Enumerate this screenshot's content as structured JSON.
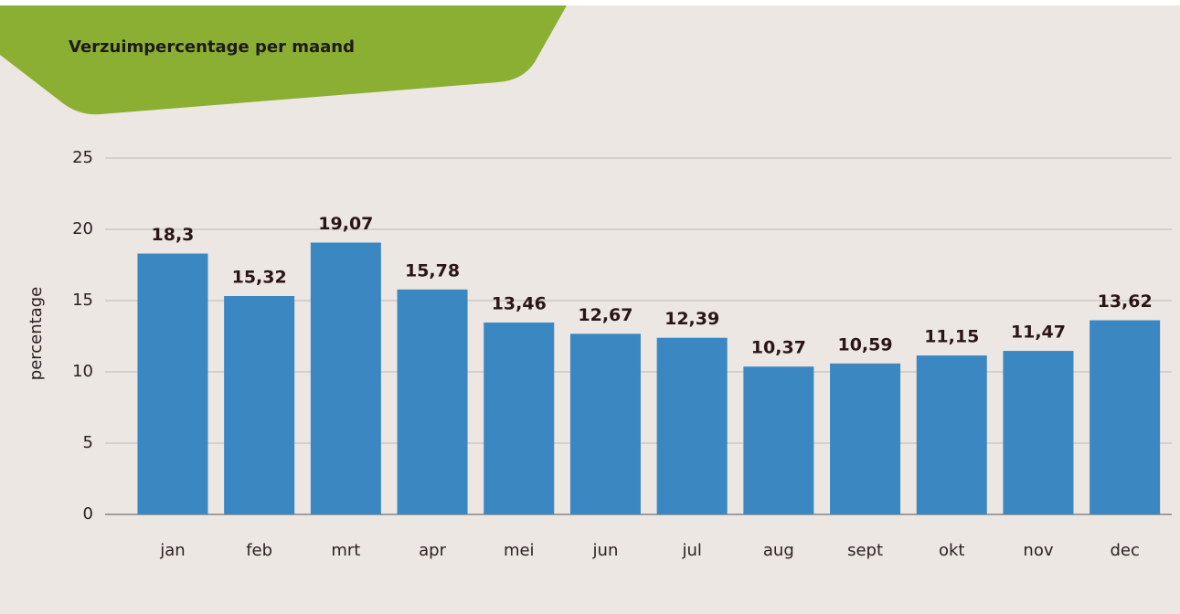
{
  "chart_data": {
    "type": "bar",
    "title": "Verzuimpercentage per maand",
    "y_label": "percentage",
    "categories": [
      "jan",
      "feb",
      "mrt",
      "apr",
      "mei",
      "jun",
      "jul",
      "aug",
      "sept",
      "okt",
      "nov",
      "dec"
    ],
    "values": [
      18.3,
      15.32,
      19.07,
      15.78,
      13.46,
      12.67,
      12.39,
      10.37,
      10.59,
      11.15,
      11.47,
      13.62
    ],
    "value_labels": [
      "18,3",
      "15,32",
      "19,07",
      "15,78",
      "13,46",
      "12,67",
      "12,39",
      "10,37",
      "10,59",
      "11,15",
      "11,47",
      "13,62"
    ],
    "color": "#3a87c2",
    "ylim": [
      0,
      25
    ],
    "yticks": [
      0,
      5,
      10,
      15,
      20,
      25
    ],
    "grid": true
  }
}
